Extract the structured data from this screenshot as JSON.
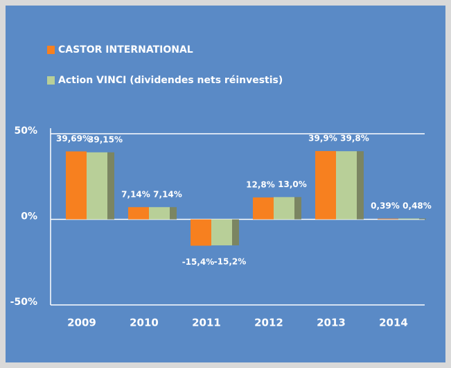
{
  "chart_data": {
    "type": "bar",
    "categories": [
      "2009",
      "2010",
      "2011",
      "2012",
      "2013",
      "2014"
    ],
    "series": [
      {
        "name": "CASTOR INTERNATIONAL",
        "color": "#f7801f",
        "values": [
          39.69,
          7.14,
          -15.4,
          12.8,
          39.9,
          0.39
        ],
        "value_labels": [
          "39,69%",
          "7,14%",
          "-15,4%",
          "12,8%",
          "39,9%",
          "0,39%"
        ]
      },
      {
        "name": "Action VINCI (dividendes nets réinvestis)",
        "color": "#b8cf98",
        "values": [
          39.15,
          7.14,
          -15.2,
          13.0,
          39.8,
          0.48
        ],
        "value_labels": [
          "39,15%",
          "7,14%",
          "-15,2%",
          "13,0%",
          "39,8%",
          "0,48%"
        ]
      }
    ],
    "ylim": [
      -50,
      50
    ],
    "yticks": [
      {
        "value": 50,
        "label": "50%"
      },
      {
        "value": 0,
        "label": "0%"
      },
      {
        "value": -50,
        "label": "-50%"
      }
    ]
  }
}
